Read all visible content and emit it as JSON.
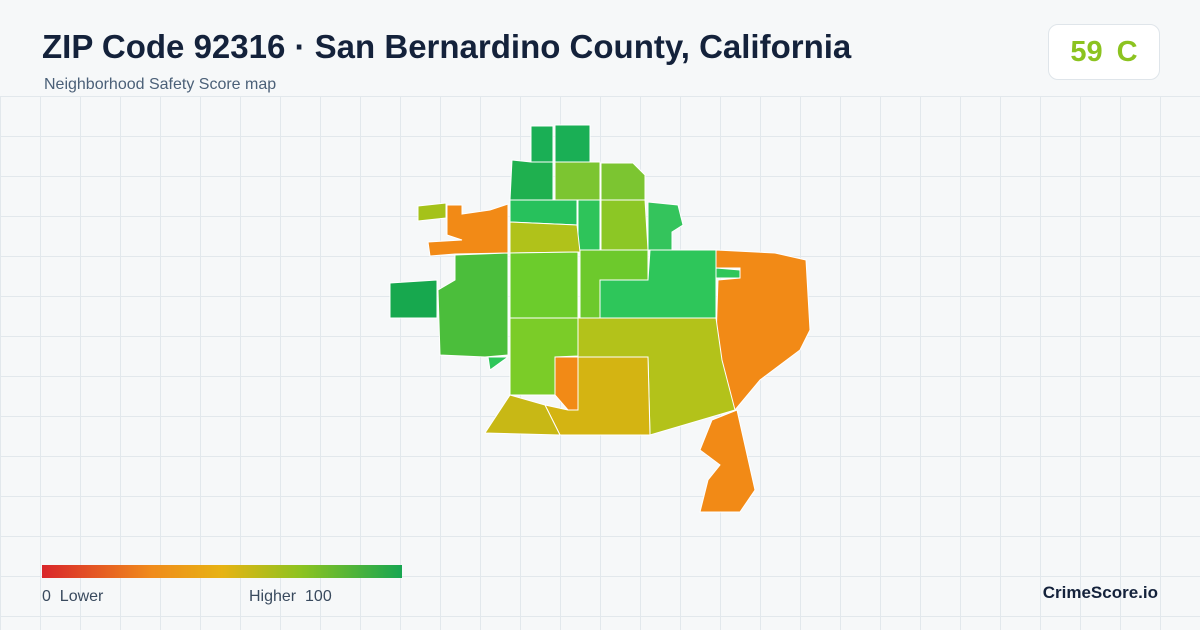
{
  "header": {
    "title": "ZIP Code 92316 · San Bernardino County, California",
    "subtitle": "Neighborhood Safety Score map"
  },
  "score": {
    "value": 59,
    "grade": "C"
  },
  "legend": {
    "min": 0,
    "min_label": "Lower",
    "max_label": "Higher",
    "max": 100
  },
  "brand": "CrimeScore.io"
}
